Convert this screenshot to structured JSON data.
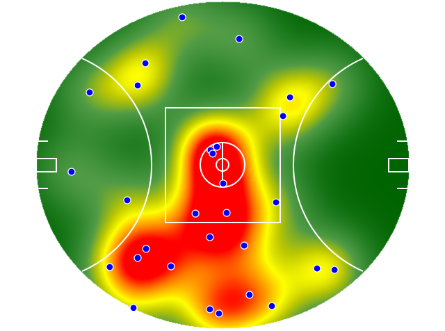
{
  "chart_data": {
    "type": "heatmap",
    "subtype": "australian-football-field-density-with-points",
    "x_range_m": [
      -80,
      80
    ],
    "y_range_m": [
      -70,
      70
    ],
    "grid": false,
    "legend": "none",
    "colors": {
      "low": "#006400",
      "mid_low": "#4a9a40",
      "mid": "#ffff00",
      "high": "#ff0000",
      "points": "#0000ff",
      "point_outline": "#ffffff",
      "lines": "#ffffff"
    },
    "points": [
      {
        "x": -17.3,
        "y": 63.2
      },
      {
        "x": 7.2,
        "y": 53.9
      },
      {
        "x": -33.1,
        "y": 43.5
      },
      {
        "x": -36.4,
        "y": 34.0
      },
      {
        "x": -57.0,
        "y": 31.0
      },
      {
        "x": 29.0,
        "y": 28.9
      },
      {
        "x": 47.2,
        "y": 34.6
      },
      {
        "x": 26.0,
        "y": 20.9
      },
      {
        "x": -5.1,
        "y": 6.3
      },
      {
        "x": -2.4,
        "y": 7.7
      },
      {
        "x": -4.2,
        "y": 4.8
      },
      {
        "x": -64.8,
        "y": -3.0
      },
      {
        "x": 0.3,
        "y": -8.0
      },
      {
        "x": -40.9,
        "y": -15.2
      },
      {
        "x": 23.0,
        "y": -16.1
      },
      {
        "x": -11.6,
        "y": -20.9
      },
      {
        "x": 1.8,
        "y": -20.6
      },
      {
        "x": -5.4,
        "y": -31.0
      },
      {
        "x": 9.3,
        "y": -34.6
      },
      {
        "x": -32.8,
        "y": -36.0
      },
      {
        "x": -36.4,
        "y": -39.9
      },
      {
        "x": -48.4,
        "y": -43.8
      },
      {
        "x": -22.1,
        "y": -43.5
      },
      {
        "x": 40.6,
        "y": -44.4
      },
      {
        "x": 48.1,
        "y": -45.0
      },
      {
        "x": 11.6,
        "y": -55.7
      },
      {
        "x": 21.2,
        "y": -60.5
      },
      {
        "x": -38.2,
        "y": -61.3
      },
      {
        "x": -5.4,
        "y": -61.9
      },
      {
        "x": -1.5,
        "y": -63.7
      }
    ]
  }
}
